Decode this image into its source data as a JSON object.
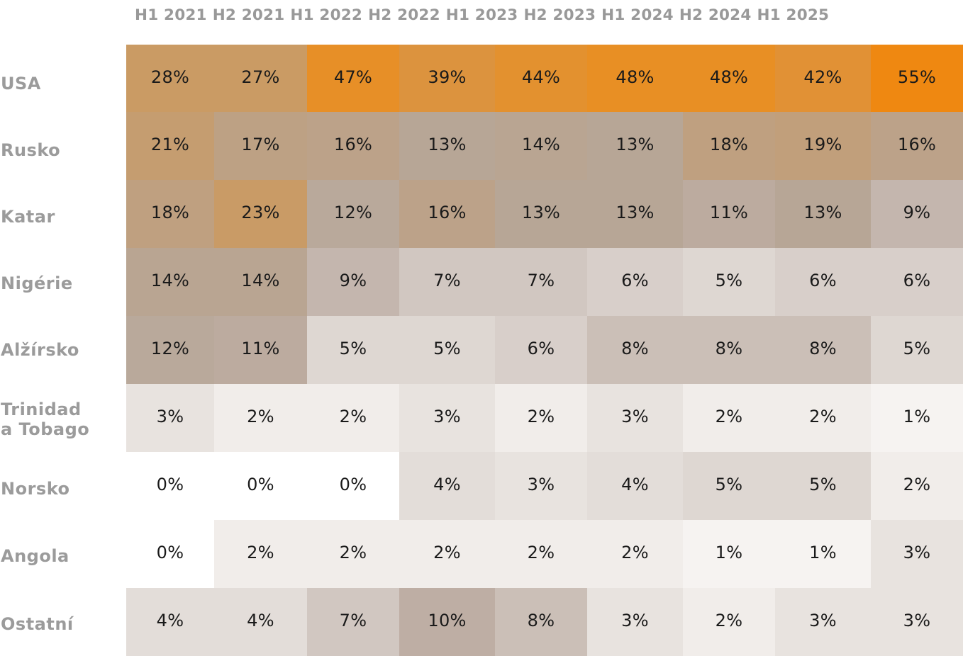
{
  "chart_data": {
    "type": "heatmap",
    "title": "",
    "xlabel": "",
    "ylabel": "",
    "value_format": "percent",
    "columns": [
      "H1 2021",
      "H2 2021",
      "H1 2022",
      "H2 2022",
      "H1 2023",
      "H2 2023",
      "H1 2024",
      "H2 2024",
      "H1 2025"
    ],
    "rows": [
      "USA",
      "Rusko",
      "Katar",
      "Nigérie",
      "Alžírsko",
      "Trinidad\na Tobago",
      "Norsko",
      "Angola",
      "Ostatní"
    ],
    "values": [
      [
        28,
        27,
        47,
        39,
        44,
        48,
        48,
        42,
        55
      ],
      [
        21,
        17,
        16,
        13,
        14,
        13,
        18,
        19,
        16
      ],
      [
        18,
        23,
        12,
        16,
        13,
        13,
        11,
        13,
        9
      ],
      [
        14,
        14,
        9,
        7,
        7,
        6,
        5,
        6,
        6
      ],
      [
        12,
        11,
        5,
        5,
        6,
        8,
        8,
        8,
        5
      ],
      [
        3,
        2,
        2,
        3,
        2,
        3,
        2,
        2,
        1
      ],
      [
        0,
        0,
        0,
        4,
        3,
        4,
        5,
        5,
        2
      ],
      [
        0,
        2,
        2,
        2,
        2,
        2,
        1,
        1,
        3
      ],
      [
        4,
        4,
        7,
        10,
        8,
        3,
        2,
        3,
        3
      ]
    ],
    "labels": [
      [
        "28%",
        "27%",
        "47%",
        "39%",
        "44%",
        "48%",
        "48%",
        "42%",
        "55%"
      ],
      [
        "21%",
        "17%",
        "16%",
        "13%",
        "14%",
        "13%",
        "18%",
        "19%",
        "16%"
      ],
      [
        "18%",
        "23%",
        "12%",
        "16%",
        "13%",
        "13%",
        "11%",
        "13%",
        "9%"
      ],
      [
        "14%",
        "14%",
        "9%",
        "7%",
        "7%",
        "6%",
        "5%",
        "6%",
        "6%"
      ],
      [
        "12%",
        "11%",
        "5%",
        "5%",
        "6%",
        "8%",
        "8%",
        "8%",
        "5%"
      ],
      [
        "3%",
        "2%",
        "2%",
        "3%",
        "2%",
        "3%",
        "2%",
        "2%",
        "1%"
      ],
      [
        "0%",
        "0%",
        "0%",
        "4%",
        "3%",
        "4%",
        "5%",
        "5%",
        "2%"
      ],
      [
        "0%",
        "2%",
        "2%",
        "2%",
        "2%",
        "2%",
        "1%",
        "1%",
        "3%"
      ],
      [
        "4%",
        "4%",
        "7%",
        "10%",
        "8%",
        "3%",
        "2%",
        "3%",
        "3%"
      ]
    ],
    "value_range": [
      0,
      55
    ],
    "grid": false,
    "legend": "none",
    "colors": {
      "low": "#ffffff",
      "mid": "#b9a89a",
      "high": "#ef8811",
      "column_label": "#999999",
      "row_label": "#9b9b9b",
      "cell_text": "#1a1a1a"
    }
  }
}
